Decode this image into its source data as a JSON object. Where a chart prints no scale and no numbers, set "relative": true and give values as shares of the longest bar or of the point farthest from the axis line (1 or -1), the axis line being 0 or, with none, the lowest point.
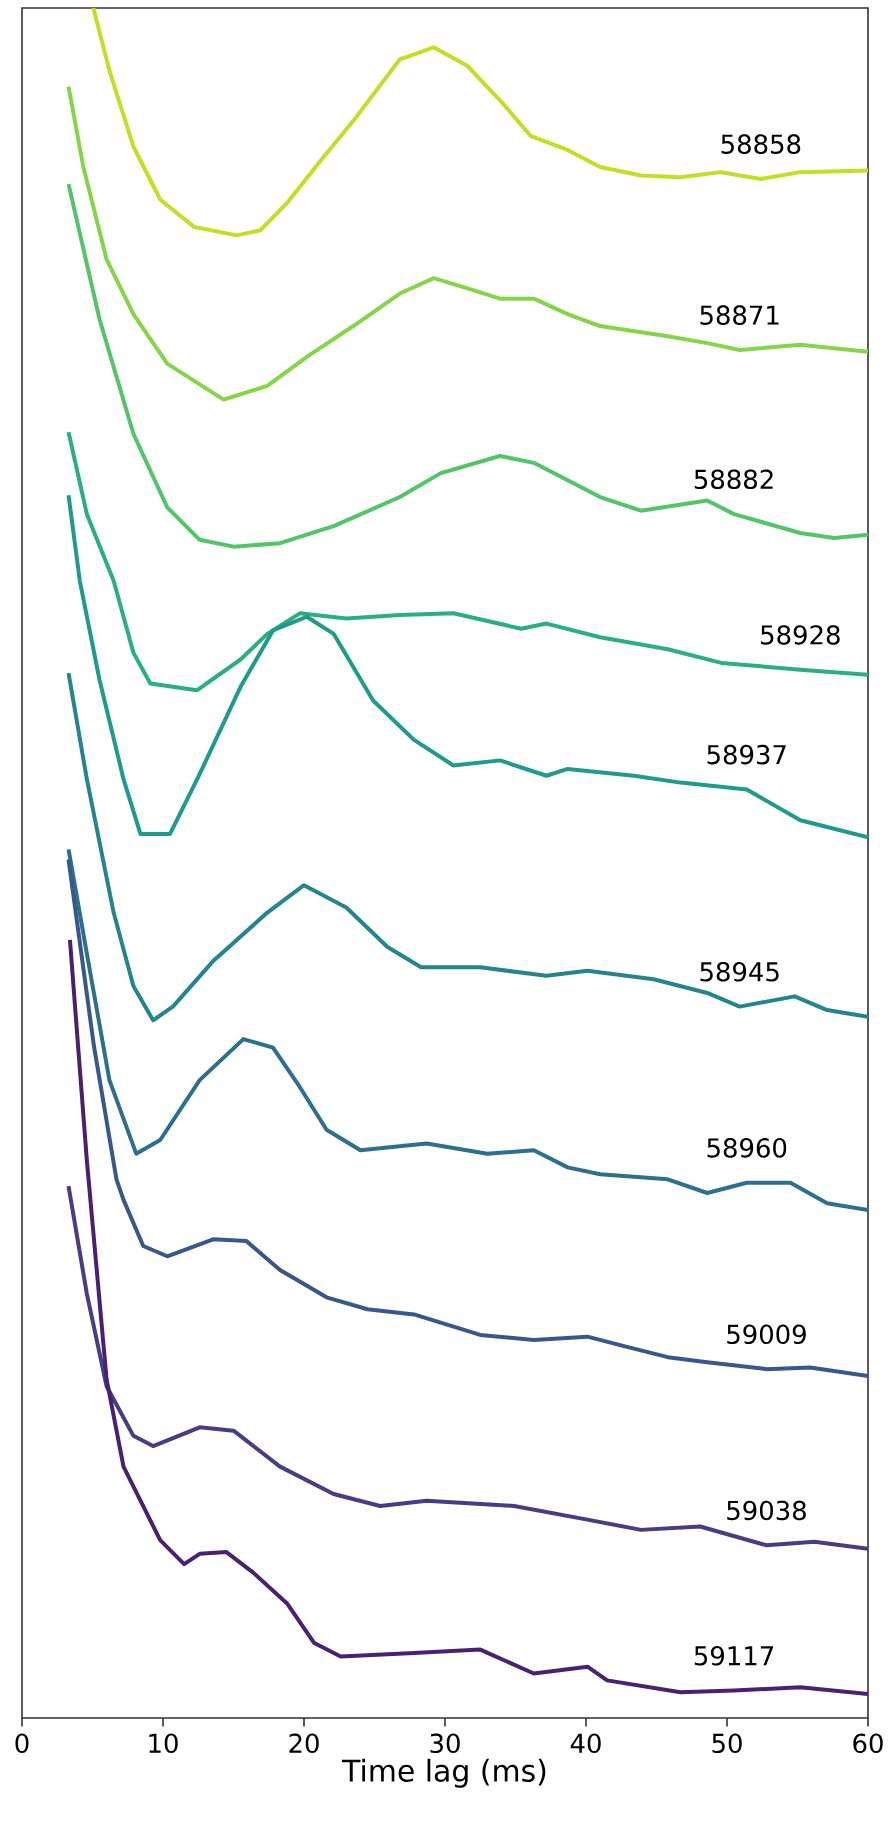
{
  "chart_data": {
    "type": "line",
    "xlabel": "Time lag (ms)",
    "relative": true,
    "xlim": [
      0,
      60
    ],
    "xticks": [
      0,
      10,
      20,
      30,
      40,
      50,
      60
    ],
    "grid": false,
    "line_style": "solid",
    "marker": "none",
    "series": [
      {
        "name": "58858",
        "color": "#c2df23",
        "x": [
          5.06,
          6.25,
          7.9,
          9.8,
          12.2,
          15.2,
          16.9,
          18.8,
          21.2,
          23.5,
          26.8,
          29.2,
          31.6,
          33.9,
          36.1,
          38.7,
          41.0,
          43.9,
          46.7,
          49.5,
          52.4,
          55.2,
          60
        ],
        "values": [
          1.0,
          0.962,
          0.919,
          0.888,
          0.872,
          0.867,
          0.87,
          0.886,
          0.911,
          0.934,
          0.97,
          0.977,
          0.966,
          0.946,
          0.925,
          0.917,
          0.907,
          0.902,
          0.901,
          0.904,
          0.9,
          0.904,
          0.905
        ]
      },
      {
        "name": "58871",
        "color": "#86d549",
        "x": [
          3.3,
          4.35,
          6.0,
          7.9,
          10.3,
          14.3,
          17.4,
          20.2,
          23.5,
          26.8,
          29.2,
          31.6,
          33.9,
          36.3,
          38.7,
          41.0,
          45.8,
          48.6,
          50.9,
          55.2,
          60
        ],
        "values": [
          0.954,
          0.907,
          0.853,
          0.821,
          0.792,
          0.771,
          0.779,
          0.796,
          0.814,
          0.833,
          0.842,
          0.836,
          0.83,
          0.83,
          0.821,
          0.814,
          0.808,
          0.804,
          0.8,
          0.803,
          0.799
        ]
      },
      {
        "name": "58882",
        "color": "#52c569",
        "x": [
          3.3,
          5.5,
          7.9,
          10.3,
          12.6,
          15.0,
          18.3,
          22.1,
          26.8,
          29.7,
          33.9,
          36.3,
          41.0,
          43.9,
          48.6,
          50.5,
          55.2,
          57.6,
          60
        ],
        "values": [
          0.897,
          0.818,
          0.751,
          0.708,
          0.689,
          0.685,
          0.687,
          0.697,
          0.714,
          0.728,
          0.738,
          0.734,
          0.714,
          0.706,
          0.712,
          0.704,
          0.693,
          0.69,
          0.692
        ]
      },
      {
        "name": "58928",
        "color": "#2ab07f",
        "x": [
          3.3,
          4.6,
          6.5,
          7.9,
          9.1,
          12.4,
          15.5,
          17.4,
          19.7,
          23.0,
          26.8,
          30.6,
          35.4,
          37.2,
          41.0,
          45.8,
          49.6,
          55.2,
          60
        ],
        "values": [
          0.752,
          0.704,
          0.665,
          0.623,
          0.605,
          0.601,
          0.619,
          0.634,
          0.646,
          0.643,
          0.645,
          0.646,
          0.637,
          0.64,
          0.632,
          0.625,
          0.617,
          0.613,
          0.61
        ]
      },
      {
        "name": "58937",
        "color": "#1e9b8a",
        "x": [
          3.3,
          4.1,
          5.5,
          7.2,
          8.4,
          10.5,
          12.6,
          15.5,
          17.8,
          20.2,
          22.1,
          24.9,
          27.8,
          30.6,
          33.9,
          37.2,
          38.7,
          43.4,
          46.7,
          51.4,
          55.2,
          60
        ],
        "values": [
          0.715,
          0.665,
          0.607,
          0.549,
          0.517,
          0.517,
          0.552,
          0.603,
          0.636,
          0.644,
          0.634,
          0.595,
          0.572,
          0.557,
          0.56,
          0.551,
          0.555,
          0.551,
          0.547,
          0.543,
          0.525,
          0.515
        ]
      },
      {
        "name": "58945",
        "color": "#25858e",
        "x": [
          3.3,
          4.6,
          6.5,
          7.9,
          9.3,
          10.7,
          13.6,
          17.4,
          20.0,
          23.0,
          25.9,
          28.3,
          32.5,
          37.2,
          40.1,
          44.8,
          48.6,
          50.9,
          54.8,
          57.1,
          60
        ],
        "values": [
          0.611,
          0.549,
          0.471,
          0.428,
          0.408,
          0.416,
          0.443,
          0.471,
          0.487,
          0.474,
          0.451,
          0.439,
          0.439,
          0.434,
          0.437,
          0.432,
          0.424,
          0.416,
          0.422,
          0.414,
          0.41
        ]
      },
      {
        "name": "58960",
        "color": "#2d708e",
        "x": [
          3.3,
          4.6,
          6.2,
          8.1,
          9.8,
          12.6,
          15.7,
          17.8,
          19.7,
          21.6,
          24.0,
          28.7,
          33.0,
          36.3,
          38.7,
          41.0,
          45.8,
          48.6,
          51.4,
          54.5,
          57.1,
          60
        ],
        "values": [
          0.508,
          0.447,
          0.373,
          0.33,
          0.338,
          0.373,
          0.397,
          0.392,
          0.369,
          0.344,
          0.332,
          0.336,
          0.33,
          0.332,
          0.322,
          0.318,
          0.315,
          0.307,
          0.313,
          0.313,
          0.301,
          0.297
        ]
      },
      {
        "name": "59009",
        "color": "#38588c",
        "x": [
          3.3,
          5.1,
          6.7,
          7.2,
          8.6,
          10.3,
          13.6,
          15.9,
          18.3,
          21.6,
          24.5,
          27.8,
          32.5,
          36.3,
          40.1,
          42.9,
          45.8,
          48.6,
          52.8,
          55.9,
          60
        ],
        "values": [
          0.502,
          0.393,
          0.315,
          0.303,
          0.276,
          0.27,
          0.28,
          0.279,
          0.262,
          0.246,
          0.239,
          0.236,
          0.224,
          0.221,
          0.223,
          0.217,
          0.211,
          0.208,
          0.204,
          0.205,
          0.2
        ]
      },
      {
        "name": "59038",
        "color": "#433e85",
        "x": [
          3.3,
          4.6,
          6.0,
          7.9,
          9.3,
          12.6,
          15.0,
          18.3,
          22.1,
          25.4,
          28.7,
          34.9,
          40.1,
          43.9,
          48.1,
          52.8,
          56.2,
          60
        ],
        "values": [
          0.311,
          0.248,
          0.194,
          0.165,
          0.159,
          0.17,
          0.168,
          0.147,
          0.131,
          0.124,
          0.127,
          0.124,
          0.116,
          0.11,
          0.112,
          0.101,
          0.103,
          0.099
        ]
      },
      {
        "name": "59117",
        "color": "#482173",
        "x": [
          3.4,
          4.6,
          6.0,
          7.2,
          9.8,
          11.5,
          12.6,
          14.5,
          16.4,
          18.8,
          20.7,
          22.6,
          27.8,
          32.5,
          36.3,
          40.1,
          41.5,
          46.7,
          50.5,
          55.2,
          60
        ],
        "values": [
          0.455,
          0.326,
          0.198,
          0.147,
          0.104,
          0.09,
          0.096,
          0.097,
          0.085,
          0.067,
          0.044,
          0.036,
          0.038,
          0.04,
          0.026,
          0.03,
          0.022,
          0.015,
          0.016,
          0.018,
          0.014
        ]
      }
    ]
  }
}
